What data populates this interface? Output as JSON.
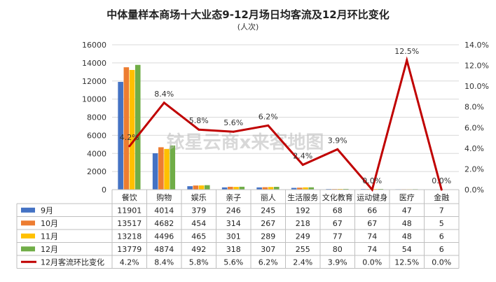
{
  "chart_data": {
    "type": "bar",
    "title": "中体量样本商场十大业态9-12月场日均客流及12月环比变化",
    "subtitle": "(人次)",
    "categories": [
      "餐饮",
      "购物",
      "娱乐",
      "亲子",
      "丽人",
      "生活服务",
      "文化教育",
      "运动健身",
      "医疗",
      "金融"
    ],
    "series": [
      {
        "name": "9月",
        "color": "#4472C4",
        "values": [
          11901,
          4014,
          379,
          246,
          245,
          192,
          68,
          66,
          47,
          7
        ]
      },
      {
        "name": "10月",
        "color": "#ED7D31",
        "values": [
          13517,
          4682,
          454,
          314,
          267,
          218,
          67,
          67,
          48,
          5
        ]
      },
      {
        "name": "11月",
        "color": "#FFC000",
        "values": [
          13218,
          4496,
          465,
          301,
          289,
          249,
          77,
          74,
          48,
          6
        ]
      },
      {
        "name": "12月",
        "color": "#70AD47",
        "values": [
          13779,
          4874,
          492,
          318,
          307,
          255,
          80,
          74,
          54,
          6
        ]
      }
    ],
    "line_series": {
      "name": "12月客流环比变化",
      "color": "#C00000",
      "values": [
        4.2,
        8.4,
        5.8,
        5.6,
        6.2,
        2.4,
        3.9,
        0.0,
        12.5,
        0.0
      ],
      "labels": [
        "4.2%",
        "8.4%",
        "5.8%",
        "5.6%",
        "6.2%",
        "2.4%",
        "3.9%",
        "0.0%",
        "12.5%",
        "0.0%"
      ]
    },
    "ylim": [
      0,
      16000
    ],
    "y_ticks": [
      "0",
      "2000",
      "4000",
      "6000",
      "8000",
      "10000",
      "12000",
      "14000",
      "16000"
    ],
    "y2lim": [
      0,
      14
    ],
    "y2_ticks": [
      "0.0%",
      "2.0%",
      "4.0%",
      "6.0%",
      "8.0%",
      "10.0%",
      "12.0%",
      "14.0%"
    ],
    "grid": true,
    "legend": "data-table"
  },
  "watermark": "铱星云商x来客地图"
}
